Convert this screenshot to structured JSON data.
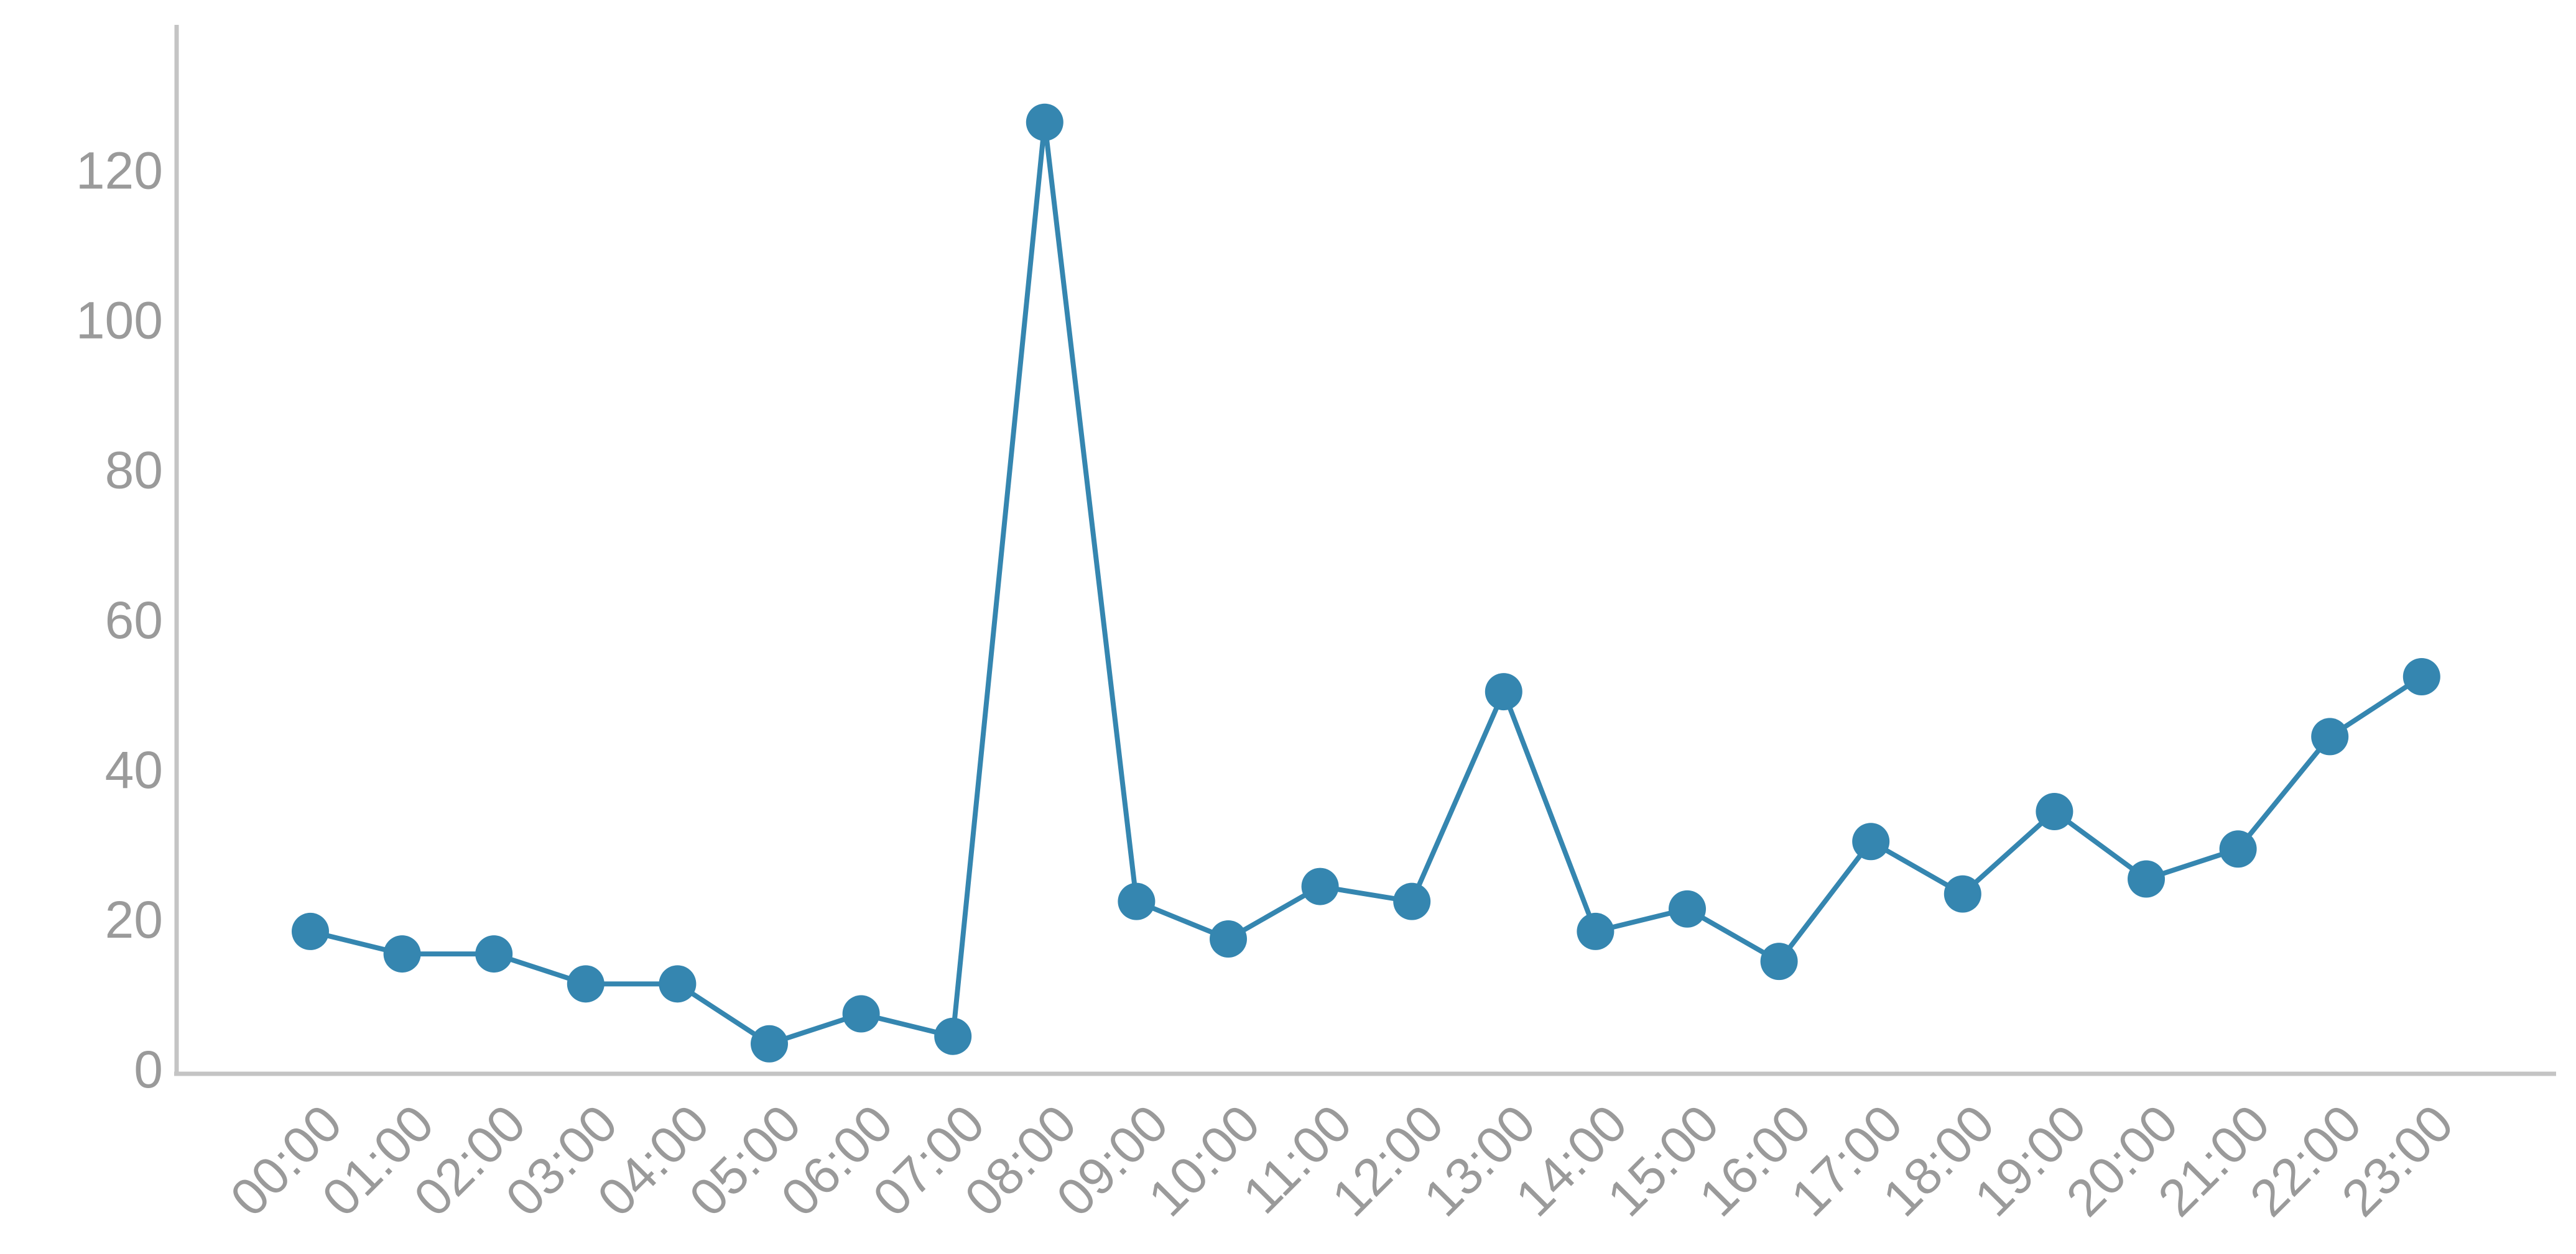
{
  "chart_data": {
    "type": "line",
    "categories": [
      "00:00",
      "01:00",
      "02:00",
      "03:00",
      "04:00",
      "05:00",
      "06:00",
      "07:00",
      "08:00",
      "09:00",
      "10:00",
      "11:00",
      "12:00",
      "13:00",
      "14:00",
      "15:00",
      "16:00",
      "17:00",
      "18:00",
      "19:00",
      "20:00",
      "21:00",
      "22:00",
      "23:00"
    ],
    "values": [
      19,
      16,
      16,
      12,
      12,
      4,
      8,
      5,
      127,
      23,
      18,
      25,
      23,
      51,
      19,
      22,
      15,
      31,
      24,
      35,
      26,
      30,
      45,
      53
    ],
    "color": "#3586b0",
    "ylim": [
      0,
      140
    ],
    "yticks": [
      0,
      20,
      40,
      60,
      80,
      100,
      120
    ],
    "grid": false
  }
}
